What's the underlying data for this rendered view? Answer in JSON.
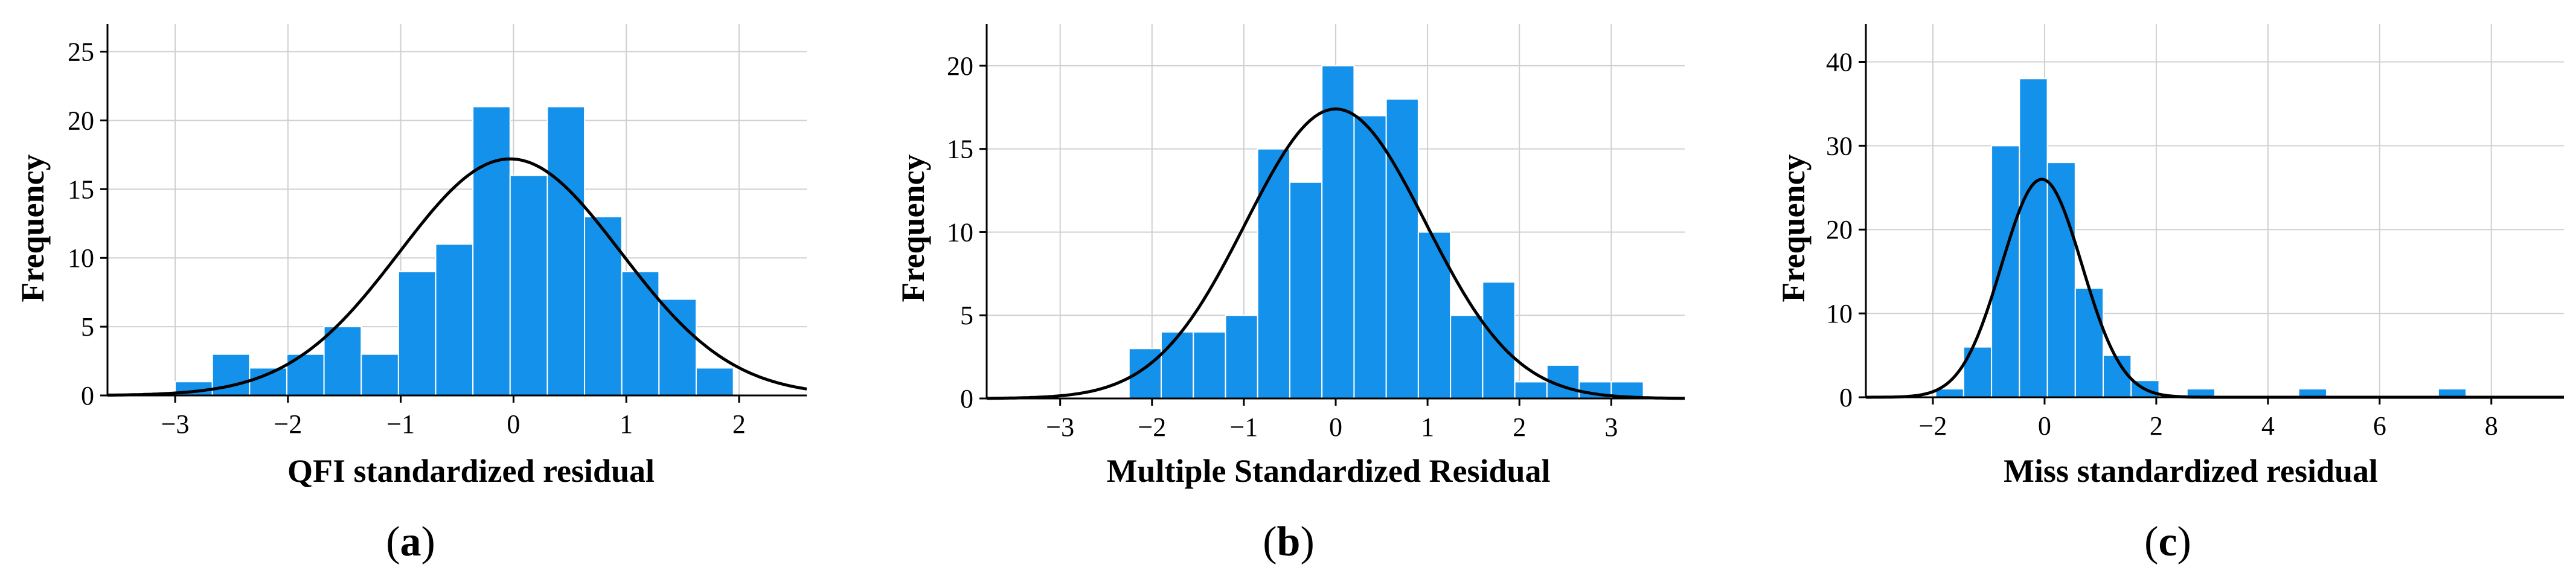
{
  "colors": {
    "bar_fill": "#1491ea",
    "bar_edge": "#ffffff",
    "grid": "#d0d0d0",
    "axis": "#000000",
    "curve": "#000000"
  },
  "chart_data": [
    {
      "type": "bar",
      "panel": "a",
      "xlabel": "QFI standardized residual",
      "ylabel": "Frequency",
      "xlim": [
        -3.6,
        2.6
      ],
      "ylim": [
        0,
        27
      ],
      "xticks": [
        -3,
        -2,
        -1,
        0,
        1,
        2
      ],
      "yticks": [
        0,
        5,
        10,
        15,
        20,
        25
      ],
      "grid": true,
      "bins": {
        "start": -3.0,
        "width": 0.33,
        "counts": [
          1,
          3,
          2,
          3,
          5,
          3,
          9,
          11,
          21,
          16,
          21,
          13,
          9,
          7,
          2
        ]
      },
      "normal_curve": {
        "mean": -0.03,
        "sd": 0.98,
        "peak": 17.2
      }
    },
    {
      "type": "bar",
      "panel": "b",
      "xlabel": "Multiple Standardized Residual",
      "ylabel": "Frequency",
      "xlim": [
        -3.8,
        3.8
      ],
      "ylim": [
        0,
        22.5
      ],
      "xticks": [
        -3,
        -2,
        -1,
        0,
        1,
        2,
        3
      ],
      "yticks": [
        0,
        5,
        10,
        15,
        20
      ],
      "grid": true,
      "bins": {
        "start": -2.25,
        "width": 0.35,
        "counts": [
          3,
          4,
          4,
          5,
          15,
          13,
          20,
          17,
          18,
          10,
          5,
          7,
          1,
          2,
          1,
          1
        ]
      },
      "normal_curve": {
        "mean": 0.0,
        "sd": 0.98,
        "peak": 17.4
      }
    },
    {
      "type": "bar",
      "panel": "c",
      "xlabel": "Miss standardized residual",
      "ylabel": "Frequency",
      "xlim": [
        -3.2,
        9.3
      ],
      "ylim": [
        0,
        44.5
      ],
      "xticks": [
        -2,
        0,
        2,
        4,
        6,
        8
      ],
      "yticks": [
        0,
        10,
        20,
        30,
        40
      ],
      "grid": true,
      "bins": {
        "start": -1.95,
        "width": 0.5,
        "counts": [
          1,
          6,
          30,
          38,
          28,
          13,
          5,
          2,
          0,
          1,
          0,
          0,
          0,
          1,
          0,
          0,
          0,
          0,
          1
        ]
      },
      "normal_curve": {
        "mean": -0.05,
        "sd": 0.72,
        "peak": 26
      }
    }
  ],
  "panel_labels": [
    {
      "open": "(",
      "letter": "a",
      "close": ")"
    },
    {
      "open": "(",
      "letter": "b",
      "close": ")"
    },
    {
      "open": "(",
      "letter": "c",
      "close": ")"
    }
  ]
}
